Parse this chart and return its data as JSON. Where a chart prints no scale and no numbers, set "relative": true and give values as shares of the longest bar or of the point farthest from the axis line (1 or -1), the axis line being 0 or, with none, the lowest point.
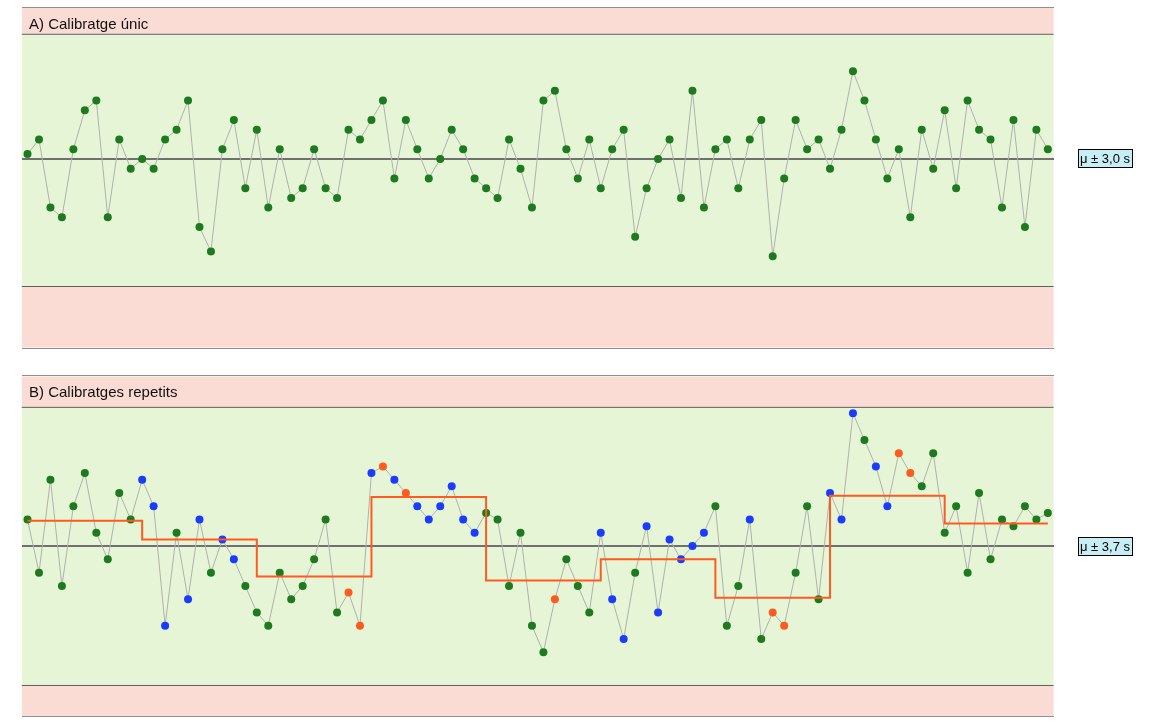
{
  "chart_data": [
    {
      "type": "line",
      "title": "A) Calibratge únic",
      "relative": true,
      "grid": false,
      "marker": "circle",
      "categories": [
        null,
        null,
        null,
        null,
        null,
        null,
        null,
        null,
        null,
        null,
        null,
        null,
        null,
        null,
        null,
        null,
        null,
        null,
        null,
        null,
        null,
        null,
        null,
        null,
        null,
        null,
        null,
        null,
        null,
        null,
        null,
        null,
        null,
        null,
        null,
        null,
        null,
        null,
        null,
        null,
        null,
        null,
        null,
        null,
        null,
        null,
        null,
        null,
        null,
        null,
        null,
        null,
        null,
        null,
        null,
        null,
        null,
        null,
        null,
        null,
        null,
        null,
        null,
        null,
        null,
        null,
        null,
        null,
        null,
        null,
        null,
        null,
        null,
        null,
        null,
        null,
        null,
        null,
        null,
        null,
        null,
        null,
        null,
        null,
        null,
        null,
        null,
        null,
        null,
        null
      ],
      "series": [
        {
          "color": "#b0b0b0",
          "colors": [
            "#1e7a1e",
            "#1e7a1e",
            "#1e7a1e",
            "#1e7a1e",
            "#1e7a1e",
            "#1e7a1e",
            "#1e7a1e",
            "#1e7a1e",
            "#1e7a1e",
            "#1e7a1e",
            "#1e7a1e",
            "#1e7a1e",
            "#1e7a1e",
            "#1e7a1e",
            "#1e7a1e",
            "#1e7a1e",
            "#1e7a1e",
            "#1e7a1e",
            "#1e7a1e",
            "#1e7a1e",
            "#1e7a1e",
            "#1e7a1e",
            "#1e7a1e",
            "#1e7a1e",
            "#1e7a1e",
            "#1e7a1e",
            "#1e7a1e",
            "#1e7a1e",
            "#1e7a1e",
            "#1e7a1e",
            "#1e7a1e",
            "#1e7a1e",
            "#1e7a1e",
            "#1e7a1e",
            "#1e7a1e",
            "#1e7a1e",
            "#1e7a1e",
            "#1e7a1e",
            "#1e7a1e",
            "#1e7a1e",
            "#1e7a1e",
            "#1e7a1e",
            "#1e7a1e",
            "#1e7a1e",
            "#1e7a1e",
            "#1e7a1e",
            "#1e7a1e",
            "#1e7a1e",
            "#1e7a1e",
            "#1e7a1e",
            "#1e7a1e",
            "#1e7a1e",
            "#1e7a1e",
            "#1e7a1e",
            "#1e7a1e",
            "#1e7a1e",
            "#1e7a1e",
            "#1e7a1e",
            "#1e7a1e",
            "#1e7a1e",
            "#1e7a1e",
            "#1e7a1e",
            "#1e7a1e",
            "#1e7a1e",
            "#1e7a1e",
            "#1e7a1e",
            "#1e7a1e",
            "#1e7a1e",
            "#1e7a1e",
            "#1e7a1e",
            "#1e7a1e",
            "#1e7a1e",
            "#1e7a1e",
            "#1e7a1e",
            "#1e7a1e",
            "#1e7a1e",
            "#1e7a1e",
            "#1e7a1e",
            "#1e7a1e",
            "#1e7a1e",
            "#1e7a1e",
            "#1e7a1e",
            "#1e7a1e",
            "#1e7a1e",
            "#1e7a1e",
            "#1e7a1e",
            "#1e7a1e",
            "#1e7a1e",
            "#1e7a1e",
            "#1e7a1e"
          ],
          "values": [
            0.05,
            0.2,
            -0.5,
            -0.6,
            0.1,
            0.5,
            0.6,
            -0.6,
            0.2,
            -0.1,
            0,
            -0.1,
            0.2,
            0.3,
            0.6,
            -0.7,
            -0.95,
            0.1,
            0.4,
            -0.3,
            0.3,
            -0.5,
            0.1,
            -0.4,
            -0.3,
            0.1,
            -0.3,
            -0.4,
            0.3,
            0.2,
            0.4,
            0.6,
            -0.2,
            0.4,
            0.1,
            -0.2,
            0,
            0.3,
            0.1,
            -0.2,
            -0.3,
            -0.4,
            0.2,
            -0.1,
            -0.5,
            0.6,
            0.7,
            0.1,
            -0.2,
            0.2,
            -0.3,
            0.1,
            0.3,
            -0.8,
            -0.3,
            0,
            0.2,
            -0.4,
            0.7,
            -0.5,
            0.1,
            0.2,
            -0.3,
            0.2,
            0.4,
            -1.0,
            -0.2,
            0.4,
            0.1,
            0.2,
            -0.1,
            0.3,
            0.9,
            0.6,
            0.2,
            -0.2,
            0.1,
            -0.6,
            0.3,
            -0.1,
            0.5,
            -0.3,
            0.6,
            0.3,
            0.2,
            -0.5,
            0.4,
            -0.7,
            0.3,
            0.1
          ]
        }
      ],
      "bands": [
        {
          "axis": "y",
          "from": -1.31,
          "to": 1.28,
          "color": "#e6f5d6"
        },
        {
          "axis": "y",
          "from": 1.28,
          "to": 1.55,
          "color": "#fadcd4"
        },
        {
          "axis": "y",
          "from": -1.94,
          "to": -1.31,
          "color": "#fadcd4"
        }
      ],
      "ref_lines": [
        {
          "axis": "y",
          "value": 1.28,
          "color": "#606060",
          "line_style": "solid"
        },
        {
          "axis": "y",
          "value": -1.31,
          "color": "#606060",
          "line_style": "solid"
        }
      ],
      "annotations": [
        "μ ± 3,0 s"
      ]
    },
    {
      "type": "line",
      "title": "B) Calibratges repetits",
      "relative": true,
      "grid": false,
      "marker": "circle",
      "categories": [
        null,
        null,
        null,
        null,
        null,
        null,
        null,
        null,
        null,
        null,
        null,
        null,
        null,
        null,
        null,
        null,
        null,
        null,
        null,
        null,
        null,
        null,
        null,
        null,
        null,
        null,
        null,
        null,
        null,
        null,
        null,
        null,
        null,
        null,
        null,
        null,
        null,
        null,
        null,
        null,
        null,
        null,
        null,
        null,
        null,
        null,
        null,
        null,
        null,
        null,
        null,
        null,
        null,
        null,
        null,
        null,
        null,
        null,
        null,
        null,
        null,
        null,
        null,
        null,
        null,
        null,
        null,
        null,
        null,
        null,
        null,
        null,
        null,
        null,
        null,
        null,
        null,
        null,
        null,
        null,
        null,
        null,
        null,
        null,
        null,
        null,
        null,
        null,
        null,
        null
      ],
      "series": [
        {
          "color": "#b0b0b0",
          "colors": [
            "#1e7a1e",
            "#1e7a1e",
            "#1e7a1e",
            "#1e7a1e",
            "#1e7a1e",
            "#1e7a1e",
            "#1e7a1e",
            "#1e7a1e",
            "#1e7a1e",
            "#1e7a1e",
            "#1a3cff",
            "#1a3cff",
            "#1a3cff",
            "#1e7a1e",
            "#1a3cff",
            "#1a3cff",
            "#1e7a1e",
            "#1a3cff",
            "#1a3cff",
            "#1e7a1e",
            "#1e7a1e",
            "#1e7a1e",
            "#1e7a1e",
            "#1e7a1e",
            "#1e7a1e",
            "#1e7a1e",
            "#1e7a1e",
            "#1e7a1e",
            "#ff5a1f",
            "#ff5a1f",
            "#1a3cff",
            "#ff5a1f",
            "#1a3cff",
            "#ff5a1f",
            "#1a3cff",
            "#1a3cff",
            "#1a3cff",
            "#1a3cff",
            "#1a3cff",
            "#1a3cff",
            "#1e7a1e",
            "#1e7a1e",
            "#1e7a1e",
            "#1e7a1e",
            "#1e7a1e",
            "#1e7a1e",
            "#ff5a1f",
            "#1e7a1e",
            "#1e7a1e",
            "#1e7a1e",
            "#1a3cff",
            "#1a3cff",
            "#1a3cff",
            "#1e7a1e",
            "#1a3cff",
            "#1a3cff",
            "#1a3cff",
            "#1a3cff",
            "#1a3cff",
            "#1a3cff",
            "#1e7a1e",
            "#1e7a1e",
            "#1e7a1e",
            "#1a3cff",
            "#1e7a1e",
            "#ff5a1f",
            "#ff5a1f",
            "#1e7a1e",
            "#1e7a1e",
            "#1e7a1e",
            "#1a3cff",
            "#1a3cff",
            "#1a3cff",
            "#1e7a1e",
            "#1a3cff",
            "#1a3cff",
            "#ff5a1f",
            "#ff5a1f",
            "#1e7a1e",
            "#1e7a1e",
            "#1e7a1e",
            "#1e7a1e",
            "#1e7a1e",
            "#1e7a1e",
            "#1e7a1e",
            "#1e7a1e",
            "#1e7a1e",
            "#1e7a1e",
            "#1e7a1e",
            "#1e7a1e"
          ],
          "values": [
            0.2,
            -0.2,
            0.5,
            -0.3,
            0.3,
            0.55,
            0.1,
            -0.1,
            0.4,
            0.2,
            0.5,
            0.3,
            -0.6,
            0.1,
            -0.4,
            0.2,
            -0.2,
            0.05,
            -0.1,
            -0.3,
            -0.5,
            -0.6,
            -0.2,
            -0.4,
            -0.3,
            -0.1,
            0.2,
            -0.5,
            -0.35,
            -0.6,
            0.55,
            0.6,
            0.5,
            0.4,
            0.3,
            0.2,
            0.3,
            0.45,
            0.2,
            0.1,
            0.25,
            0.2,
            -0.3,
            0.1,
            -0.6,
            -0.8,
            -0.4,
            -0.1,
            -0.3,
            -0.5,
            0.1,
            -0.4,
            -0.7,
            -0.2,
            0.15,
            -0.5,
            0.05,
            -0.1,
            0,
            0.1,
            0.3,
            -0.6,
            -0.3,
            0.2,
            -0.7,
            -0.5,
            -0.6,
            -0.2,
            0.3,
            -0.4,
            0.4,
            0.2,
            1.0,
            0.8,
            0.6,
            0.3,
            0.7,
            0.55,
            0.45,
            0.7,
            0.1,
            0.3,
            -0.2,
            0.4,
            -0.1,
            0.2,
            0.15,
            0.3,
            0.2,
            0.25
          ]
        },
        {
          "type": "step",
          "marker": "none",
          "color": "#ff5a1f",
          "values": [
            0.19,
            0.19,
            0.19,
            0.19,
            0.19,
            0.19,
            0.19,
            0.19,
            0.19,
            0.19,
            0.05,
            0.05,
            0.05,
            0.05,
            0.05,
            0.05,
            0.05,
            0.05,
            0.05,
            0.05,
            -0.23,
            -0.23,
            -0.23,
            -0.23,
            -0.23,
            -0.23,
            -0.23,
            -0.23,
            -0.23,
            -0.23,
            0.37,
            0.37,
            0.37,
            0.37,
            0.37,
            0.37,
            0.37,
            0.37,
            0.37,
            0.37,
            -0.26,
            -0.26,
            -0.26,
            -0.26,
            -0.26,
            -0.26,
            -0.26,
            -0.26,
            -0.26,
            -0.26,
            -0.1,
            -0.1,
            -0.1,
            -0.1,
            -0.1,
            -0.1,
            -0.1,
            -0.1,
            -0.1,
            -0.1,
            -0.39,
            -0.39,
            -0.39,
            -0.39,
            -0.39,
            -0.39,
            -0.39,
            -0.39,
            -0.39,
            -0.39,
            0.38,
            0.38,
            0.38,
            0.38,
            0.38,
            0.38,
            0.38,
            0.38,
            0.38,
            0.38,
            0.17,
            0.17,
            0.17,
            0.17,
            0.17,
            0.17,
            0.17,
            0.17,
            0.17,
            0.17
          ]
        }
      ],
      "bands": [
        {
          "axis": "y",
          "from": -1.05,
          "to": 1.045,
          "color": "#e6f5d6"
        },
        {
          "axis": "y",
          "from": 1.045,
          "to": 1.28,
          "color": "#fadcd4"
        },
        {
          "axis": "y",
          "from": -1.28,
          "to": -1.05,
          "color": "#fadcd4"
        }
      ],
      "ref_lines": [
        {
          "axis": "y",
          "value": 1.045,
          "color": "#606060",
          "line_style": "solid"
        },
        {
          "axis": "y",
          "value": -1.05,
          "color": "#606060",
          "line_style": "solid"
        }
      ],
      "annotations": [
        "μ ± 3,7 s"
      ]
    }
  ]
}
